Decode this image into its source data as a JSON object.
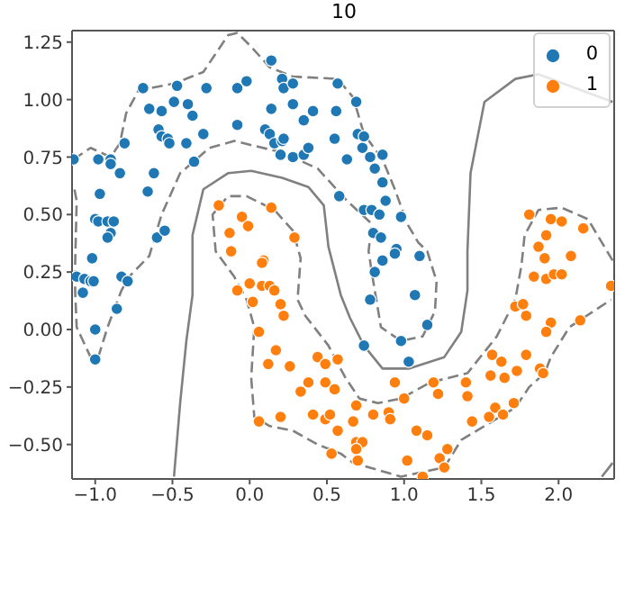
{
  "chart_data": {
    "type": "scatter",
    "title": "10",
    "marker": "circle",
    "legend": "top right",
    "xlim": [
      -1.15,
      2.36
    ],
    "ylim": [
      -0.65,
      1.3
    ],
    "xticks": [
      {
        "value": -1,
        "label": "−1.0"
      },
      {
        "value": -0.5,
        "label": "−0.5"
      },
      {
        "value": 0,
        "label": "0.0"
      },
      {
        "value": 0.5,
        "label": "0.5"
      },
      {
        "value": 1,
        "label": "1.0"
      },
      {
        "value": 1.5,
        "label": "1.5"
      },
      {
        "value": 2,
        "label": "2.0"
      }
    ],
    "yticks": [
      {
        "value": -0.5,
        "label": "−0.50"
      },
      {
        "value": -0.25,
        "label": "−0.25"
      },
      {
        "value": 0,
        "label": "0.00"
      },
      {
        "value": 0.25,
        "label": "0.25"
      },
      {
        "value": 0.5,
        "label": "0.50"
      },
      {
        "value": 0.75,
        "label": "0.75"
      },
      {
        "value": 1,
        "label": "1.00"
      },
      {
        "value": 1.25,
        "label": "1.25"
      }
    ],
    "series": [
      {
        "type": "line",
        "marker": "none",
        "color": "#808080",
        "line_style": "solid",
        "x": [
          -0.49,
          -0.45,
          -0.41,
          -0.37,
          -0.37,
          -0.3,
          -0.14,
          0.01,
          0.21,
          0.38,
          0.48,
          0.51,
          0.59,
          0.65,
          0.74,
          0.86,
          1.03,
          1.26,
          1.37,
          1.41,
          1.41,
          1.43,
          1.52,
          1.72,
          1.87,
          2.35
        ],
        "values": [
          -0.64,
          -0.32,
          -0.05,
          0.15,
          0.41,
          0.61,
          0.68,
          0.69,
          0.66,
          0.62,
          0.54,
          0.36,
          0.15,
          0.05,
          -0.07,
          -0.17,
          -0.17,
          -0.12,
          -0.01,
          0.17,
          0.34,
          0.68,
          0.99,
          1.09,
          1.11,
          0.99
        ]
      },
      {
        "type": "line",
        "marker": "none",
        "color": "#808080",
        "line_style": "solid",
        "x": [
          2.28,
          2.35
        ],
        "values": [
          -0.64,
          -0.58
        ]
      },
      {
        "type": "line",
        "marker": "none",
        "color": "#808080",
        "line_style": "dashed",
        "x": [
          -1.14,
          -1.03,
          -0.9,
          -0.84,
          -0.8,
          -0.72,
          -0.49,
          -0.3,
          -0.14,
          -0.08,
          0.01,
          0.13,
          0.28,
          0.57,
          0.67,
          0.74,
          0.86,
          0.94,
          1.02,
          1.09,
          1.15,
          1.21,
          1.2,
          1.12,
          0.98,
          0.85,
          0.8,
          0.77,
          0.79,
          0.63,
          0.44,
          0.21,
          -0.1,
          -0.26,
          -0.45,
          -0.57,
          -0.65,
          -0.78,
          -0.83,
          -0.92,
          -0.98,
          -1.03,
          -1.12,
          -1.13,
          -1.13,
          -1.12,
          -1.14
        ],
        "values": [
          0.74,
          0.79,
          0.75,
          0.81,
          0.94,
          1.04,
          1.07,
          1.12,
          1.28,
          1.29,
          1.23,
          1.14,
          1.1,
          1.09,
          1.01,
          0.85,
          0.74,
          0.61,
          0.46,
          0.38,
          0.34,
          0.21,
          0.08,
          -0.03,
          -0.05,
          0.01,
          0.21,
          0.34,
          0.46,
          0.56,
          0.7,
          0.77,
          0.82,
          0.79,
          0.68,
          0.5,
          0.32,
          0.23,
          0.17,
          0.01,
          -0.12,
          -0.12,
          0.01,
          0.17,
          0.28,
          0.56,
          0.63
        ]
      },
      {
        "type": "line",
        "marker": "none",
        "color": "#808080",
        "line_style": "dashed",
        "x": [
          2.35,
          2.19,
          2.02,
          1.87,
          1.78,
          1.76,
          1.72,
          1.6,
          1.41,
          1.17,
          0.98,
          0.83,
          0.71,
          0.62,
          0.51,
          0.36,
          0.31,
          0.33,
          0.28,
          0.16,
          -0.02,
          -0.14,
          -0.24,
          -0.22,
          -0.1,
          -0.02,
          0.03,
          0.01,
          0.03,
          0.13,
          0.28,
          0.44,
          0.59,
          0.67,
          0.98,
          1.26,
          1.37,
          1.52,
          1.72,
          1.81,
          1.91,
          1.95,
          2.07,
          2.34
        ],
        "values": [
          0.3,
          0.48,
          0.53,
          0.52,
          0.41,
          0.28,
          0.13,
          -0.03,
          -0.19,
          -0.23,
          -0.3,
          -0.32,
          -0.3,
          -0.21,
          -0.07,
          0.06,
          0.13,
          0.31,
          0.43,
          0.52,
          0.58,
          0.58,
          0.5,
          0.34,
          0.23,
          0.13,
          0.01,
          -0.21,
          -0.38,
          -0.42,
          -0.44,
          -0.5,
          -0.54,
          -0.58,
          -0.64,
          -0.6,
          -0.48,
          -0.42,
          -0.34,
          -0.25,
          -0.19,
          -0.12,
          0.01,
          0.13
        ]
      },
      {
        "name": "0",
        "color": "#1f77b4",
        "x": [
          -0.69,
          -0.47,
          -0.28,
          -0.08,
          -0.02,
          0.14,
          -0.65,
          -0.57,
          -0.49,
          -0.4,
          -0.37,
          -0.59,
          -0.57,
          -0.53,
          -0.52,
          -0.41,
          -0.3,
          -0.08,
          -0.81,
          -0.98,
          -0.9,
          -0.9,
          -0.84,
          -0.62,
          -0.36,
          -0.66,
          -0.97,
          -1.14,
          -1.0,
          -0.98,
          -0.92,
          -0.88,
          -0.9,
          -0.92,
          -0.6,
          -0.55,
          -1.02,
          0.21,
          0.22,
          0.28,
          0.14,
          0.28,
          0.35,
          0.41,
          0.1,
          0.13,
          0.16,
          0.21,
          0.22,
          0.2,
          0.28,
          0.35,
          0.38,
          0.56,
          0.55,
          0.58,
          0.57,
          0.69,
          0.7,
          0.74,
          0.73,
          0.78,
          0.86,
          0.63,
          0.81,
          0.86,
          0.88,
          0.74,
          0.79,
          0.84,
          0.98,
          0.8,
          0.85,
          0.95,
          0.94,
          0.86,
          1.1,
          0.81,
          0.78,
          1.07,
          1.15,
          0.98,
          0.74,
          1.03,
          -1.12,
          -1.07,
          -1.03,
          -1.01,
          -1.08,
          -0.83,
          -0.79,
          -0.86,
          -1.0,
          -1.0
        ],
        "values": [
          1.05,
          1.06,
          1.05,
          1.05,
          1.08,
          1.17,
          0.96,
          0.95,
          0.99,
          0.98,
          0.93,
          0.87,
          0.84,
          0.83,
          0.81,
          0.81,
          0.85,
          0.89,
          0.81,
          0.74,
          0.74,
          0.72,
          0.68,
          0.68,
          0.73,
          0.6,
          0.59,
          0.74,
          0.48,
          0.47,
          0.47,
          0.47,
          0.42,
          0.4,
          0.4,
          0.43,
          0.31,
          1.09,
          1.05,
          1.07,
          0.96,
          0.98,
          0.91,
          0.95,
          0.87,
          0.85,
          0.81,
          0.82,
          0.83,
          0.76,
          0.75,
          0.76,
          0.79,
          0.95,
          0.83,
          0.58,
          1.07,
          0.99,
          0.85,
          0.84,
          0.79,
          0.75,
          0.76,
          0.74,
          0.7,
          0.64,
          0.56,
          0.52,
          0.52,
          0.5,
          0.49,
          0.42,
          0.4,
          0.35,
          0.33,
          0.3,
          0.32,
          0.25,
          0.13,
          0.15,
          0.02,
          -0.05,
          -0.07,
          -0.14,
          0.23,
          0.22,
          0.21,
          0.21,
          0.16,
          0.23,
          0.21,
          0.09,
          0.0,
          -0.13
        ]
      },
      {
        "name": "1",
        "color": "#ff7f0e",
        "x": [
          -0.2,
          -0.05,
          -0.01,
          0.14,
          -0.13,
          0.29,
          -0.12,
          0.09,
          0.08,
          0.0,
          -0.08,
          0.08,
          0.13,
          0.16,
          0.02,
          0.2,
          0.22,
          0.06,
          0.17,
          0.12,
          0.26,
          0.44,
          0.49,
          0.57,
          0.33,
          0.38,
          0.49,
          0.55,
          0.06,
          0.2,
          0.41,
          0.49,
          0.52,
          0.57,
          0.53,
          1.91,
          2.08,
          1.84,
          1.92,
          1.97,
          2.02,
          2.34,
          1.72,
          1.77,
          1.79,
          1.95,
          1.92,
          2.14,
          1.57,
          1.63,
          1.79,
          1.56,
          1.65,
          1.73,
          1.88,
          1.9,
          0.94,
          1.19,
          1.0,
          1.22,
          1.4,
          1.41,
          0.69,
          0.8,
          0.9,
          0.91,
          0.67,
          1.08,
          1.15,
          1.44,
          1.55,
          1.59,
          1.64,
          1.71,
          0.69,
          0.73,
          0.69,
          0.7,
          1.02,
          1.28,
          1.23,
          1.26,
          1.12,
          1.81,
          1.95,
          2.02,
          2.16,
          1.92,
          1.87
        ],
        "values": [
          0.54,
          0.49,
          0.45,
          0.53,
          0.42,
          0.4,
          0.34,
          0.3,
          0.29,
          0.2,
          0.17,
          0.19,
          0.19,
          0.17,
          0.12,
          0.11,
          0.06,
          -0.01,
          -0.09,
          -0.15,
          -0.16,
          -0.12,
          -0.15,
          -0.13,
          -0.27,
          -0.23,
          -0.23,
          -0.26,
          -0.4,
          -0.38,
          -0.37,
          -0.39,
          -0.37,
          -0.44,
          -0.54,
          0.31,
          0.32,
          0.23,
          0.22,
          0.24,
          0.24,
          0.19,
          0.1,
          0.11,
          0.06,
          0.03,
          -0.01,
          0.04,
          -0.11,
          -0.14,
          -0.11,
          -0.2,
          -0.21,
          -0.18,
          -0.17,
          -0.19,
          -0.23,
          -0.23,
          -0.3,
          -0.28,
          -0.23,
          -0.29,
          -0.33,
          -0.37,
          -0.36,
          -0.39,
          -0.4,
          -0.44,
          -0.46,
          -0.4,
          -0.38,
          -0.34,
          -0.37,
          -0.32,
          -0.49,
          -0.49,
          -0.52,
          -0.57,
          -0.57,
          -0.52,
          -0.56,
          -0.6,
          -0.64,
          0.5,
          0.48,
          0.47,
          0.44,
          0.41,
          0.36
        ]
      }
    ]
  }
}
